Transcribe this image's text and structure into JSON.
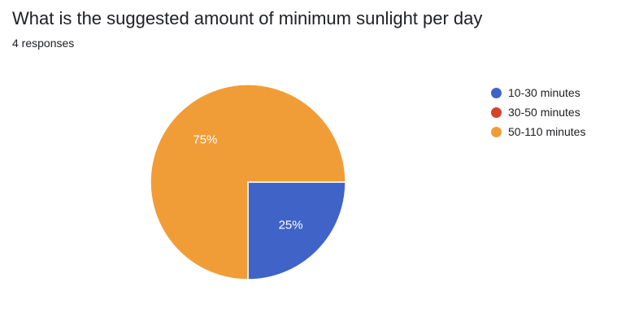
{
  "question": {
    "title": "What is the suggested amount of minimum sunlight per day",
    "response_count": "4 responses"
  },
  "chart_data": {
    "type": "pie",
    "categories": [
      "10-30 minutes",
      "30-50 minutes",
      "50-110 minutes"
    ],
    "values": [
      1,
      0,
      3
    ],
    "percent_labels": [
      "25%",
      "",
      "75%"
    ],
    "colors": [
      "#4063c8",
      "#d6432b",
      "#f19d37"
    ],
    "legend_position": "right"
  }
}
